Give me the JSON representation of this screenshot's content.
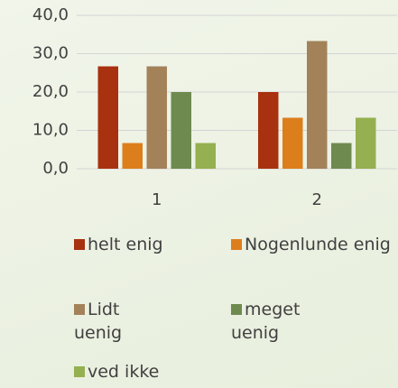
{
  "chart_data": {
    "type": "bar",
    "categories": [
      "1",
      "2"
    ],
    "series": [
      {
        "name": "helt enig",
        "color": "#a8310f",
        "values": [
          26.7,
          20.0
        ]
      },
      {
        "name": "Nogenlunde enig",
        "color": "#dd7e1c",
        "values": [
          6.7,
          13.3
        ]
      },
      {
        "name": "Lidt uenig",
        "color": "#a3825a",
        "values": [
          26.7,
          33.3
        ]
      },
      {
        "name": "meget uenig",
        "color": "#6f8a4f",
        "values": [
          20.0,
          6.7
        ]
      },
      {
        "name": "ved ikke",
        "color": "#94b050",
        "values": [
          6.7,
          13.3
        ]
      }
    ],
    "ylim": [
      0,
      40
    ],
    "yticks": [
      {
        "value": 0,
        "label": "0,0"
      },
      {
        "value": 10,
        "label": "10,0"
      },
      {
        "value": 20,
        "label": "20,0"
      },
      {
        "value": 30,
        "label": "30,0"
      },
      {
        "value": 40,
        "label": "40,0"
      }
    ],
    "grid": true
  }
}
